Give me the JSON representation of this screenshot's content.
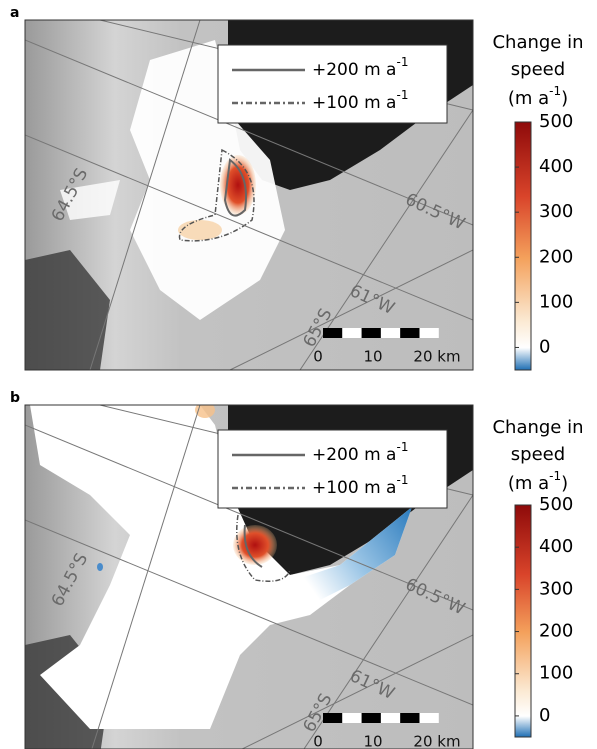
{
  "panels": [
    {
      "label": "a",
      "legend": [
        {
          "text": "+200 m a",
          "sup": "-1"
        },
        {
          "text": "+100 m a",
          "sup": "-1"
        }
      ],
      "colorbar": {
        "title": [
          "Change in",
          "speed"
        ],
        "unit": [
          "(m a",
          "-1",
          ")"
        ],
        "clim": [
          -50,
          500
        ],
        "ticks": [
          500,
          400,
          300,
          200,
          100,
          0
        ]
      },
      "map_labels": [
        "64.5°S",
        "60.5°W",
        "65°S",
        "61°W"
      ],
      "scale": [
        "0",
        "10",
        "20 km"
      ]
    },
    {
      "label": "b",
      "legend": [
        {
          "text": "+200 m a",
          "sup": "-1"
        },
        {
          "text": "+100 m a",
          "sup": "-1"
        }
      ],
      "colorbar": {
        "title": [
          "Change in",
          "speed"
        ],
        "unit": [
          "(m a",
          "-1",
          ")"
        ],
        "clim": [
          -50,
          500
        ],
        "ticks": [
          500,
          400,
          300,
          200,
          100,
          0
        ]
      },
      "map_labels": [
        "64.5°S",
        "60.5°W",
        "65°S",
        "61°W"
      ],
      "scale": [
        "0",
        "10",
        "20 km"
      ]
    }
  ]
}
